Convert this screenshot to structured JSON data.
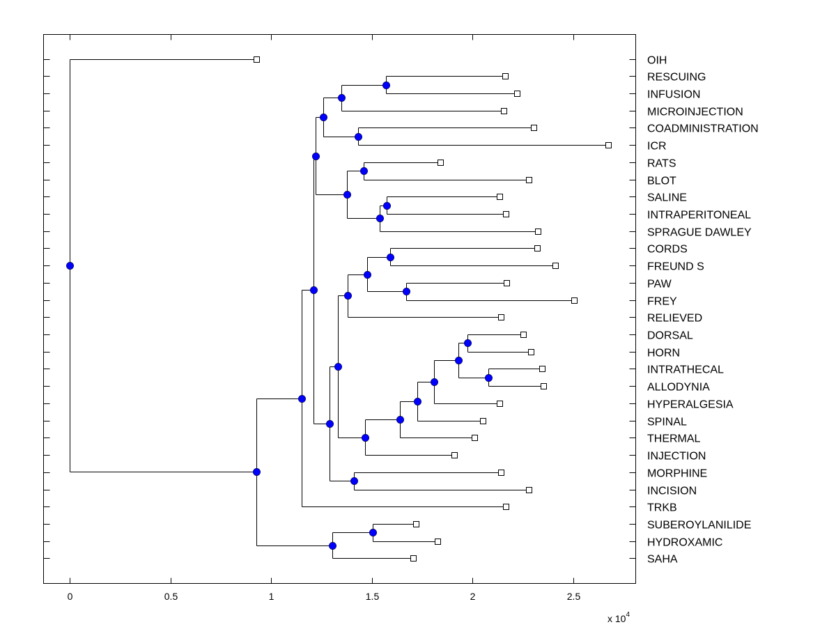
{
  "chart_data": {
    "type": "dendrogram",
    "title": "",
    "xlabel": "",
    "ylabel": "",
    "x_scale_label": "x 10",
    "x_scale_exponent": "4",
    "xlim": [
      -0.13,
      2.81
    ],
    "x_ticks": [
      0,
      0.5,
      1,
      1.5,
      2,
      2.5
    ],
    "x_tick_labels": [
      "0",
      "0.5",
      "1",
      "1.5",
      "2",
      "2.5"
    ],
    "grid": false,
    "colors": {
      "node": "#0000ff",
      "line": "#000000",
      "leaf_fill": "#ffffff"
    },
    "leaves": [
      {
        "label": "OIH",
        "x": 0.925
      },
      {
        "label": "RESCUING",
        "x": 2.16
      },
      {
        "label": "INFUSION",
        "x": 2.22
      },
      {
        "label": "MICROINJECTION",
        "x": 2.155
      },
      {
        "label": "COADMINISTRATION",
        "x": 2.305
      },
      {
        "label": "ICR",
        "x": 2.675
      },
      {
        "label": "RATS",
        "x": 1.84
      },
      {
        "label": "BLOT",
        "x": 2.28
      },
      {
        "label": "SALINE",
        "x": 2.135
      },
      {
        "label": "INTRAPERITONEAL",
        "x": 2.165
      },
      {
        "label": "SPRAGUE DAWLEY",
        "x": 2.325
      },
      {
        "label": "CORDS",
        "x": 2.32
      },
      {
        "label": "FREUND S",
        "x": 2.41
      },
      {
        "label": "PAW",
        "x": 2.17
      },
      {
        "label": "FREY",
        "x": 2.505
      },
      {
        "label": "RELIEVED",
        "x": 2.14
      },
      {
        "label": "DORSAL",
        "x": 2.25
      },
      {
        "label": "HORN",
        "x": 2.29
      },
      {
        "label": "INTRATHECAL",
        "x": 2.345
      },
      {
        "label": "ALLODYNIA",
        "x": 2.35
      },
      {
        "label": "HYPERALGESIA",
        "x": 2.135
      },
      {
        "label": "SPINAL",
        "x": 2.05
      },
      {
        "label": "THERMAL",
        "x": 2.01
      },
      {
        "label": "INJECTION",
        "x": 1.91
      },
      {
        "label": "MORPHINE",
        "x": 2.14
      },
      {
        "label": "INCISION",
        "x": 2.28
      },
      {
        "label": "TRKB",
        "x": 2.165
      },
      {
        "label": "SUBEROYLANILIDE",
        "x": 1.72
      },
      {
        "label": "HYDROXAMIC",
        "x": 1.825
      },
      {
        "label": "SAHA",
        "x": 1.705
      }
    ],
    "nodes": [
      {
        "id": "n_resc_inf",
        "x": 1.57,
        "children": [
          "L1",
          "L2"
        ]
      },
      {
        "id": "n_ri_micro",
        "x": 1.35,
        "children": [
          "n_resc_inf",
          "L3"
        ]
      },
      {
        "id": "n_coad_icr",
        "x": 1.43,
        "children": [
          "L4",
          "L5"
        ]
      },
      {
        "id": "n_top1",
        "x": 1.26,
        "children": [
          "n_ri_micro",
          "n_coad_icr"
        ]
      },
      {
        "id": "n_rats_blot",
        "x": 1.46,
        "children": [
          "L6",
          "L7"
        ]
      },
      {
        "id": "n_sal_ip",
        "x": 1.575,
        "children": [
          "L8",
          "L9"
        ]
      },
      {
        "id": "n_sal_sd",
        "x": 1.54,
        "children": [
          "n_sal_ip",
          "L10"
        ]
      },
      {
        "id": "n_rb_sal",
        "x": 1.375,
        "children": [
          "n_rats_blot",
          "n_sal_sd"
        ]
      },
      {
        "id": "n_top2",
        "x": 1.22,
        "children": [
          "n_top1",
          "n_rb_sal"
        ]
      },
      {
        "id": "n_cords_fr",
        "x": 1.59,
        "children": [
          "L11",
          "L12"
        ]
      },
      {
        "id": "n_paw_frey",
        "x": 1.67,
        "children": [
          "L13",
          "L14"
        ]
      },
      {
        "id": "n_cf_pf",
        "x": 1.475,
        "children": [
          "n_cords_fr",
          "n_paw_frey"
        ]
      },
      {
        "id": "n_cfpf_rel",
        "x": 1.38,
        "children": [
          "n_cf_pf",
          "L15"
        ]
      },
      {
        "id": "n_dor_horn",
        "x": 1.975,
        "children": [
          "L16",
          "L17"
        ]
      },
      {
        "id": "n_ith_allo",
        "x": 2.08,
        "children": [
          "L18",
          "L19"
        ]
      },
      {
        "id": "n_dh_ia",
        "x": 1.93,
        "children": [
          "n_dor_horn",
          "n_ith_allo"
        ]
      },
      {
        "id": "n_hyper",
        "x": 1.81,
        "children": [
          "n_dh_ia",
          "L20"
        ]
      },
      {
        "id": "n_spinal",
        "x": 1.725,
        "children": [
          "n_hyper",
          "L21"
        ]
      },
      {
        "id": "n_thermal",
        "x": 1.64,
        "children": [
          "n_spinal",
          "L22"
        ]
      },
      {
        "id": "n_injection",
        "x": 1.465,
        "children": [
          "n_thermal",
          "L23"
        ]
      },
      {
        "id": "n_mid_a",
        "x": 1.33,
        "children": [
          "n_cfpf_rel",
          "n_injection"
        ]
      },
      {
        "id": "n_morph_inc",
        "x": 1.41,
        "children": [
          "L24",
          "L25"
        ]
      },
      {
        "id": "n_mid_b",
        "x": 1.29,
        "children": [
          "n_mid_a",
          "n_morph_inc"
        ]
      },
      {
        "id": "n_mid_c",
        "x": 1.21,
        "children": [
          "n_top2",
          "n_mid_b"
        ]
      },
      {
        "id": "n_trkb",
        "x": 1.15,
        "children": [
          "n_mid_c",
          "L26"
        ]
      },
      {
        "id": "n_sub_hyd",
        "x": 1.505,
        "children": [
          "L27",
          "L28"
        ]
      },
      {
        "id": "n_saha",
        "x": 1.305,
        "children": [
          "n_sub_hyd",
          "L29"
        ]
      },
      {
        "id": "n_big",
        "x": 0.925,
        "children": [
          "n_trkb",
          "n_saha"
        ]
      },
      {
        "id": "n_root",
        "x": 0.0,
        "children": [
          "L0",
          "n_big"
        ]
      }
    ]
  }
}
